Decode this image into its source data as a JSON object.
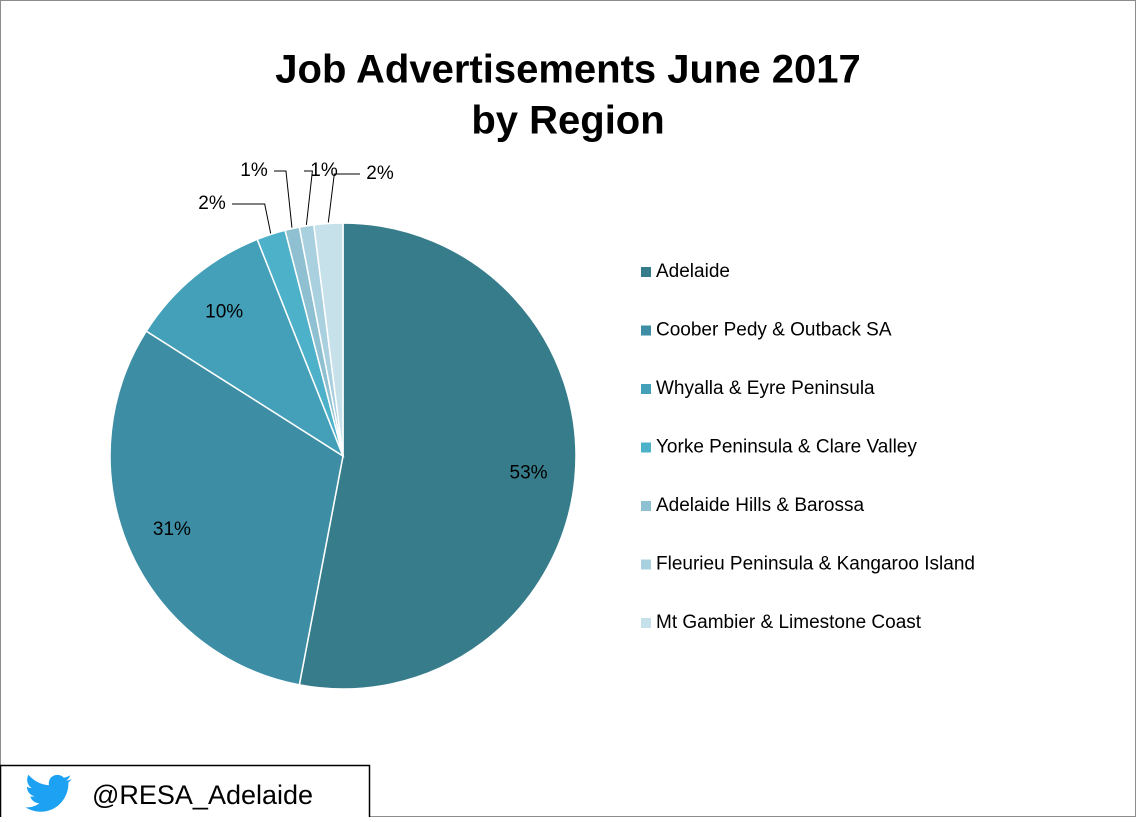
{
  "chart_data": {
    "type": "pie",
    "title": [
      "Job Advertisements  June 2017",
      "by Region"
    ],
    "categories": [
      "Adelaide",
      "Coober Pedy & Outback SA",
      "Whyalla & Eyre Peninsula",
      "Yorke Peninsula & Clare Valley",
      "Adelaide Hills & Barossa",
      "Fleurieu Peninsula & Kangaroo Island",
      "Mt Gambier & Limestone Coast"
    ],
    "values": [
      53,
      31,
      10,
      2,
      1,
      1,
      2
    ],
    "value_labels": [
      "53%",
      "31%",
      "10%",
      "2%",
      "1%",
      "1%",
      "2%"
    ],
    "colors": [
      "#377c8b",
      "#3d8ea5",
      "#44a0b9",
      "#4cb1c9",
      "#8ec0d1",
      "#a9d0de",
      "#c6e1ea"
    ],
    "legend": "right"
  },
  "footer": {
    "handle": "@RESA_Adelaide"
  }
}
